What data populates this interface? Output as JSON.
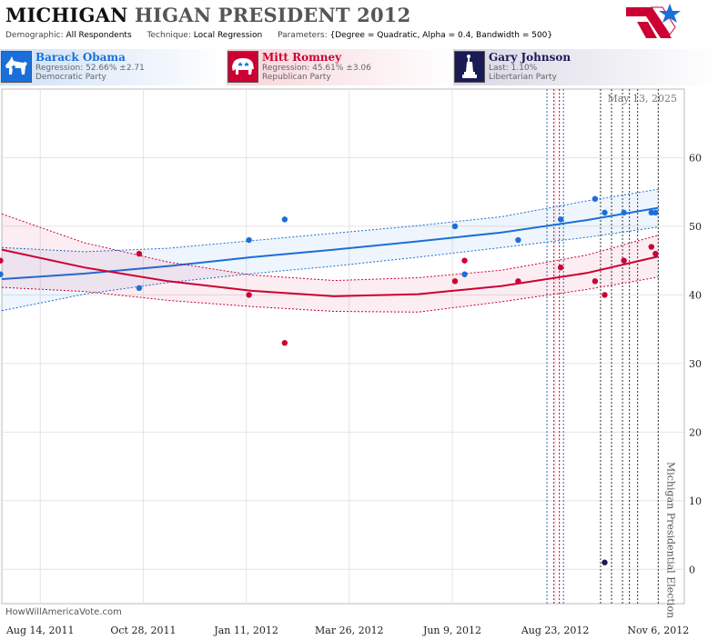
{
  "header": {
    "title_state": "MICHIGAN",
    "title_rest": "HIGAN PRESIDENT 2012",
    "params": [
      {
        "key": "Demographic:",
        "value": "All Respondents"
      },
      {
        "key": "Technique:",
        "value": "Local Regression"
      },
      {
        "key": "Parameters:",
        "value": "{Degree = Quadratic, Alpha = 0.4, Bandwidth = 500}"
      }
    ]
  },
  "legend": {
    "obama": {
      "name": "Barack Obama",
      "line2": "Regression: 52.66% ±2.71",
      "line3": "Democratic Party",
      "color": "#1a6fd8",
      "icon": "donkey-icon"
    },
    "romney": {
      "name": "Mitt Romney",
      "line2": "Regression: 45.61% ±3.06",
      "line3": "Republican Party",
      "color": "#cc0033",
      "icon": "elephant-icon"
    },
    "johnson": {
      "name": "Gary Johnson",
      "line2": "Last: 1.10%",
      "line3": "Libertarian Party",
      "color": "#1a1a55",
      "icon": "statue-of-liberty-icon"
    }
  },
  "watermark": "HowWillAmericaVote.com",
  "chart_data": {
    "type": "scatter",
    "date_label": "May 13, 2025",
    "election_label": "Michigan Presidential Election",
    "x_tick_labels": [
      "Aug 14, 2011",
      "Oct 28, 2011",
      "Jan 11, 2012",
      "Mar 26, 2012",
      "Jun 9, 2012",
      "Aug 23, 2012",
      "Nov 6, 2012"
    ],
    "x_ticks": [
      "2011-08-14",
      "2011-10-28",
      "2012-01-11",
      "2012-03-26",
      "2012-06-09",
      "2012-08-23",
      "2012-11-06"
    ],
    "xlim": [
      "2011-07-17",
      "2012-11-25"
    ],
    "ylim": [
      -5,
      70
    ],
    "y_ticks": [
      0,
      10,
      20,
      30,
      40,
      50,
      60
    ],
    "grid": true,
    "event_lines": [
      {
        "date": "2012-08-17",
        "color": "#3060c8"
      },
      {
        "date": "2012-08-22",
        "color": "#cc0033"
      },
      {
        "date": "2012-08-26",
        "color": "#cc0033"
      },
      {
        "date": "2012-08-29",
        "color": "#3060c8"
      },
      {
        "date": "2012-09-25",
        "color": "#333333"
      },
      {
        "date": "2012-10-03",
        "color": "#333333"
      },
      {
        "date": "2012-10-11",
        "color": "#333333"
      },
      {
        "date": "2012-10-16",
        "color": "#333333"
      },
      {
        "date": "2012-10-22",
        "color": "#333333"
      },
      {
        "date": "2012-11-06",
        "color": "#333333"
      }
    ],
    "series": [
      {
        "name": "Barack Obama",
        "color": "#1a6fd8",
        "points": [
          [
            "2011-07-16",
            43
          ],
          [
            "2011-10-25",
            41
          ],
          [
            "2012-01-13",
            48
          ],
          [
            "2012-02-08",
            51
          ],
          [
            "2012-06-11",
            50
          ],
          [
            "2012-06-18",
            43
          ],
          [
            "2012-07-27",
            48
          ],
          [
            "2012-08-27",
            51
          ],
          [
            "2012-09-21",
            54
          ],
          [
            "2012-09-28",
            52
          ],
          [
            "2012-10-12",
            52
          ],
          [
            "2012-11-01",
            52
          ],
          [
            "2012-11-04",
            52
          ]
        ],
        "trend": [
          [
            "2011-07-17",
            42.3,
            37.7,
            46.9
          ],
          [
            "2011-09-15",
            43.1,
            40.1,
            46.3
          ],
          [
            "2011-11-15",
            44.2,
            41.8,
            46.8
          ],
          [
            "2012-01-15",
            45.5,
            43.1,
            47.9
          ],
          [
            "2012-03-15",
            46.6,
            44.2,
            49.0
          ],
          [
            "2012-05-15",
            47.8,
            45.5,
            50.1
          ],
          [
            "2012-07-15",
            49.1,
            46.9,
            51.4
          ],
          [
            "2012-09-15",
            50.9,
            48.4,
            53.7
          ],
          [
            "2012-11-06",
            52.7,
            49.9,
            55.4
          ]
        ]
      },
      {
        "name": "Mitt Romney",
        "color": "#cc0033",
        "points": [
          [
            "2011-07-16",
            45
          ],
          [
            "2011-10-25",
            46
          ],
          [
            "2012-01-13",
            40
          ],
          [
            "2012-02-08",
            33
          ],
          [
            "2012-06-11",
            42
          ],
          [
            "2012-06-18",
            45
          ],
          [
            "2012-07-27",
            42
          ],
          [
            "2012-08-27",
            44
          ],
          [
            "2012-09-21",
            42
          ],
          [
            "2012-09-28",
            40
          ],
          [
            "2012-10-12",
            45
          ],
          [
            "2012-11-01",
            47
          ],
          [
            "2012-11-04",
            46
          ]
        ],
        "trend": [
          [
            "2011-07-17",
            46.6,
            41.1,
            51.8
          ],
          [
            "2011-09-15",
            44.0,
            40.5,
            47.6
          ],
          [
            "2011-11-15",
            42.0,
            39.2,
            44.8
          ],
          [
            "2012-01-15",
            40.6,
            38.3,
            42.9
          ],
          [
            "2012-03-15",
            39.8,
            37.6,
            42.1
          ],
          [
            "2012-05-15",
            40.1,
            37.5,
            42.5
          ],
          [
            "2012-07-15",
            41.3,
            39.0,
            43.6
          ],
          [
            "2012-09-15",
            43.2,
            40.8,
            45.8
          ],
          [
            "2012-11-06",
            45.6,
            42.6,
            48.7
          ]
        ]
      },
      {
        "name": "Gary Johnson",
        "color": "#1a1a55",
        "points": [
          [
            "2012-09-28",
            1
          ]
        ]
      }
    ]
  }
}
